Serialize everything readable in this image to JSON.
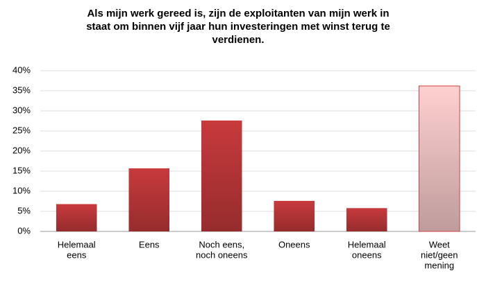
{
  "chart_data": {
    "type": "bar",
    "title": [
      "Als mijn werk gereed is, zijn de exploitanten van mijn werk in",
      "staat om binnen vijf jaar hun investeringen met winst terug te",
      "verdienen."
    ],
    "categories": [
      [
        "Helemaal",
        "eens"
      ],
      [
        "Eens"
      ],
      [
        "Noch eens,",
        "noch oneens"
      ],
      [
        "Oneens"
      ],
      [
        "Helemaal",
        "oneens"
      ],
      [
        "Weet",
        "niet/geen",
        "mening"
      ]
    ],
    "values": [
      6.8,
      15.7,
      27.6,
      7.6,
      5.8,
      36.2
    ],
    "colors": [
      "#c83a3c",
      "#c83a3c",
      "#c83a3c",
      "#c83a3c",
      "#c83a3c",
      "#ffd0d0"
    ],
    "ylim": [
      0,
      40
    ],
    "yticks": [
      {
        "value": 0,
        "label": "0%"
      },
      {
        "value": 5,
        "label": "5%"
      },
      {
        "value": 10,
        "label": "10%"
      },
      {
        "value": 15,
        "label": "15%"
      },
      {
        "value": 20,
        "label": "20%"
      },
      {
        "value": 25,
        "label": "25%"
      },
      {
        "value": 30,
        "label": "30%"
      },
      {
        "value": 35,
        "label": "35%"
      },
      {
        "value": 40,
        "label": "40%"
      }
    ],
    "grid": true
  }
}
